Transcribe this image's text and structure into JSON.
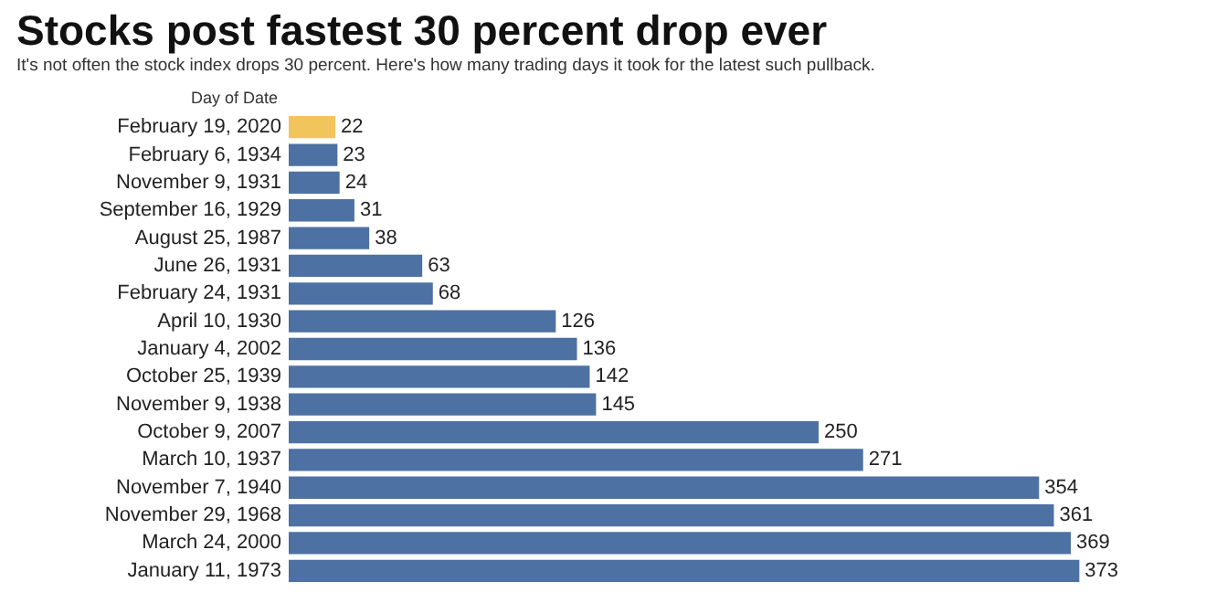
{
  "chart_data": {
    "type": "bar",
    "orientation": "horizontal",
    "title": "Stocks post fastest 30 percent drop ever",
    "subtitle": "It's not often the stock index drops 30 percent. Here's how many trading days it took for the latest such pullback.",
    "ylabel": "Day of Date",
    "categories": [
      "February 19, 2020",
      "February 6, 1934",
      "November 9, 1931",
      "September 16, 1929",
      "August 25, 1987",
      "June 26, 1931",
      "February 24, 1931",
      "April 10, 1930",
      "January 4, 2002",
      "October 25, 1939",
      "November 9, 1938",
      "October 9, 2007",
      "March 10, 1937",
      "November 7, 1940",
      "November 29, 1968",
      "March 24, 2000",
      "January 11, 1973"
    ],
    "values": [
      22,
      23,
      24,
      31,
      38,
      63,
      68,
      126,
      136,
      142,
      145,
      250,
      271,
      354,
      361,
      369,
      373
    ],
    "colors": [
      "#f2c45c",
      "#4d71a3",
      "#4d71a3",
      "#4d71a3",
      "#4d71a3",
      "#4d71a3",
      "#4d71a3",
      "#4d71a3",
      "#4d71a3",
      "#4d71a3",
      "#4d71a3",
      "#4d71a3",
      "#4d71a3",
      "#4d71a3",
      "#4d71a3",
      "#4d71a3",
      "#4d71a3"
    ],
    "data_labels": true
  }
}
